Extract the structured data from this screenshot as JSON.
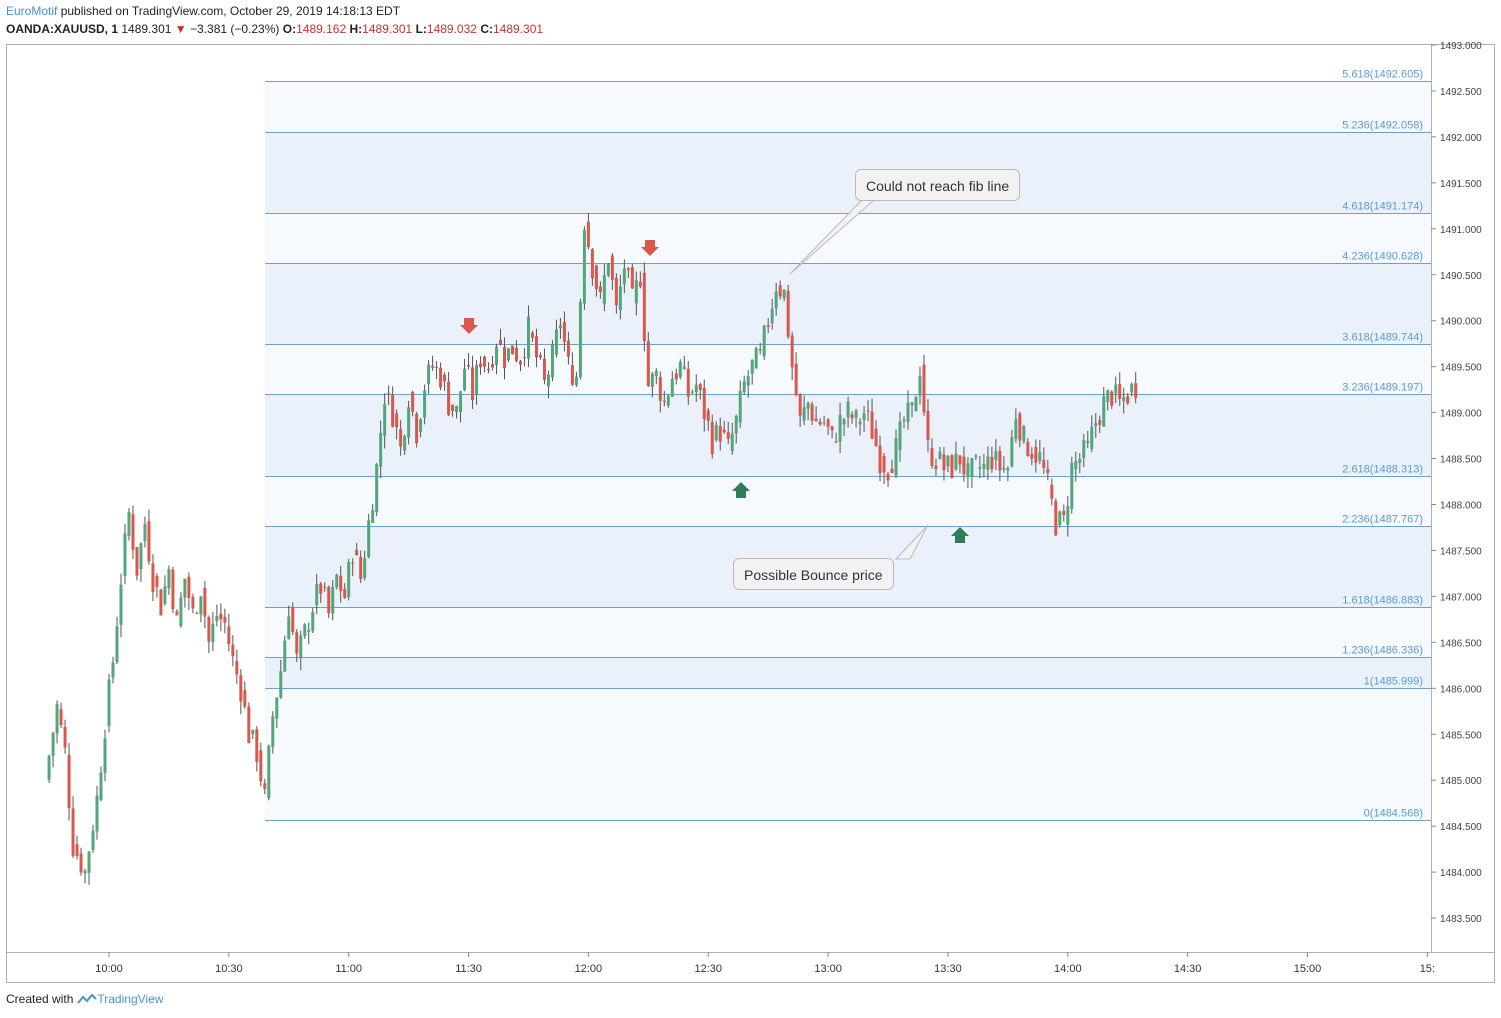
{
  "header": {
    "author": "EuroMotif",
    "published_text": "published on TradingView.com, October 29, 2019 14:18:13 EDT",
    "symbol": "OANDA:XAUUSD, 1",
    "last_price": "1489.301",
    "change": "−3.381 (−0.23%)",
    "open_label": "O:",
    "open": "1489.162",
    "high_label": "H:",
    "high": "1489.301",
    "low_label": "L:",
    "low": "1489.032",
    "close_label": "C:",
    "close": "1489.301"
  },
  "footer": {
    "created_with": "Created with",
    "brand": "TradingView"
  },
  "colors": {
    "up": "#55a57a",
    "down": "#d9574b",
    "fib_line": "#6fa0c8",
    "fib_text": "#5b9bd5",
    "fib_band": "#eaf1fa",
    "fib_band_light": "#f6f9fd",
    "arrow_down": "#d9574b",
    "arrow_up": "#2e7d56"
  },
  "callouts": [
    {
      "id": "could-not-reach",
      "text": "Could not reach fib line"
    },
    {
      "id": "possible-bounce",
      "text": "Possible Bounce price"
    }
  ],
  "chart_data": {
    "type": "candlestick",
    "title": "",
    "symbol": "OANDA:XAUUSD",
    "interval": "1",
    "ylim": [
      1483.0,
      1493.0
    ],
    "y_ticks": [
      "1483.500",
      "1484.000",
      "1484.500",
      "1485.000",
      "1485.500",
      "1486.000",
      "1486.500",
      "1487.000",
      "1487.500",
      "1488.000",
      "1488.500",
      "1489.000",
      "1489.500",
      "1490.000",
      "1490.500",
      "1491.000",
      "1491.500",
      "1492.000",
      "1492.500",
      "1493.000"
    ],
    "x_ticks": [
      "10:00",
      "10:30",
      "11:00",
      "11:30",
      "12:00",
      "12:30",
      "13:00",
      "13:30",
      "14:00",
      "14:30",
      "15:00",
      "15:"
    ],
    "fib_levels": [
      {
        "ratio": "0",
        "price": 1484.568,
        "label": "0(1484.568)"
      },
      {
        "ratio": "1",
        "price": 1485.999,
        "label": "1(1485.999)"
      },
      {
        "ratio": "1.236",
        "price": 1486.336,
        "label": "1.236(1486.336)"
      },
      {
        "ratio": "1.618",
        "price": 1486.883,
        "label": "1.618(1486.883)"
      },
      {
        "ratio": "2.236",
        "price": 1487.767,
        "label": "2.236(1487.767)"
      },
      {
        "ratio": "2.618",
        "price": 1488.313,
        "label": "2.618(1488.313)"
      },
      {
        "ratio": "3.236",
        "price": 1489.197,
        "label": "3.236(1489.197)"
      },
      {
        "ratio": "3.618",
        "price": 1489.744,
        "label": "3.618(1489.744)"
      },
      {
        "ratio": "4.236",
        "price": 1490.628,
        "label": "4.236(1490.628)"
      },
      {
        "ratio": "4.618",
        "price": 1491.174,
        "label": "4.618(1491.174)"
      },
      {
        "ratio": "5.236",
        "price": 1492.058,
        "label": "5.236(1492.058)"
      },
      {
        "ratio": "5.618",
        "price": 1492.605,
        "label": "5.618(1492.605)"
      }
    ],
    "price_path": [
      [
        "09:45",
        1485.0
      ],
      [
        "09:48",
        1485.8
      ],
      [
        "09:50",
        1485.3
      ],
      [
        "09:52",
        1484.3
      ],
      [
        "09:55",
        1484.0
      ],
      [
        "09:58",
        1484.8
      ],
      [
        "10:00",
        1485.6
      ],
      [
        "10:02",
        1486.3
      ],
      [
        "10:04",
        1487.2
      ],
      [
        "10:06",
        1487.9
      ],
      [
        "10:08",
        1487.3
      ],
      [
        "10:10",
        1487.8
      ],
      [
        "10:12",
        1487.2
      ],
      [
        "10:14",
        1486.9
      ],
      [
        "10:16",
        1487.3
      ],
      [
        "10:18",
        1486.7
      ],
      [
        "10:20",
        1487.2
      ],
      [
        "10:22",
        1486.8
      ],
      [
        "10:24",
        1487.1
      ],
      [
        "10:26",
        1486.5
      ],
      [
        "10:28",
        1486.8
      ],
      [
        "10:30",
        1486.7
      ],
      [
        "10:32",
        1486.3
      ],
      [
        "10:34",
        1486.0
      ],
      [
        "10:36",
        1485.5
      ],
      [
        "10:38",
        1485.3
      ],
      [
        "10:40",
        1484.8
      ],
      [
        "10:42",
        1485.7
      ],
      [
        "10:44",
        1486.2
      ],
      [
        "10:46",
        1486.9
      ],
      [
        "10:48",
        1486.3
      ],
      [
        "10:50",
        1486.6
      ],
      [
        "10:52",
        1486.9
      ],
      [
        "10:54",
        1487.1
      ],
      [
        "10:56",
        1486.8
      ],
      [
        "10:58",
        1487.2
      ],
      [
        "11:00",
        1487.0
      ],
      [
        "11:02",
        1487.5
      ],
      [
        "11:04",
        1487.2
      ],
      [
        "11:06",
        1487.8
      ],
      [
        "11:08",
        1488.4
      ],
      [
        "11:10",
        1489.2
      ],
      [
        "11:12",
        1489.0
      ],
      [
        "11:14",
        1488.6
      ],
      [
        "11:16",
        1489.2
      ],
      [
        "11:18",
        1488.8
      ],
      [
        "11:20",
        1489.3
      ],
      [
        "11:22",
        1489.5
      ],
      [
        "11:24",
        1489.4
      ],
      [
        "11:26",
        1489.1
      ],
      [
        "11:28",
        1489.0
      ],
      [
        "11:30",
        1489.5
      ],
      [
        "11:32",
        1489.2
      ],
      [
        "11:34",
        1489.6
      ],
      [
        "11:36",
        1489.5
      ],
      [
        "11:38",
        1489.8
      ],
      [
        "11:40",
        1489.6
      ],
      [
        "11:42",
        1489.7
      ],
      [
        "11:44",
        1489.6
      ],
      [
        "11:46",
        1489.9
      ],
      [
        "11:48",
        1489.6
      ],
      [
        "11:50",
        1489.3
      ],
      [
        "11:52",
        1489.6
      ],
      [
        "11:54",
        1490.0
      ],
      [
        "11:56",
        1489.5
      ],
      [
        "11:58",
        1489.4
      ],
      [
        "12:00",
        1491.1
      ],
      [
        "12:02",
        1490.6
      ],
      [
        "12:04",
        1490.2
      ],
      [
        "12:06",
        1490.7
      ],
      [
        "12:08",
        1490.1
      ],
      [
        "12:10",
        1490.6
      ],
      [
        "12:12",
        1490.2
      ],
      [
        "12:14",
        1490.5
      ],
      [
        "12:16",
        1489.3
      ],
      [
        "12:18",
        1489.4
      ],
      [
        "12:20",
        1489.1
      ],
      [
        "12:22",
        1489.4
      ],
      [
        "12:24",
        1489.5
      ],
      [
        "12:26",
        1489.2
      ],
      [
        "12:28",
        1489.3
      ],
      [
        "12:30",
        1489.0
      ],
      [
        "12:32",
        1488.7
      ],
      [
        "12:34",
        1488.8
      ],
      [
        "12:36",
        1488.6
      ],
      [
        "12:38",
        1488.9
      ],
      [
        "12:40",
        1489.3
      ],
      [
        "12:42",
        1489.5
      ],
      [
        "12:44",
        1489.6
      ],
      [
        "12:46",
        1490.0
      ],
      [
        "12:48",
        1490.4
      ],
      [
        "12:50",
        1490.3
      ],
      [
        "12:52",
        1489.5
      ],
      [
        "12:54",
        1488.9
      ],
      [
        "12:56",
        1489.1
      ],
      [
        "12:58",
        1488.9
      ],
      [
        "13:00",
        1488.9
      ],
      [
        "13:02",
        1488.7
      ],
      [
        "13:04",
        1488.9
      ],
      [
        "13:06",
        1489.0
      ],
      [
        "13:08",
        1488.9
      ],
      [
        "13:10",
        1489.0
      ],
      [
        "13:12",
        1488.8
      ],
      [
        "13:14",
        1488.5
      ],
      [
        "13:16",
        1488.4
      ],
      [
        "13:18",
        1488.6
      ],
      [
        "13:20",
        1488.9
      ],
      [
        "13:22",
        1489.0
      ],
      [
        "13:24",
        1489.5
      ],
      [
        "13:26",
        1488.6
      ],
      [
        "13:28",
        1488.5
      ],
      [
        "13:30",
        1488.4
      ],
      [
        "13:32",
        1488.4
      ],
      [
        "13:34",
        1488.5
      ],
      [
        "13:36",
        1488.3
      ],
      [
        "13:38",
        1488.4
      ],
      [
        "13:40",
        1488.4
      ],
      [
        "13:42",
        1488.5
      ],
      [
        "13:44",
        1488.4
      ],
      [
        "13:46",
        1488.4
      ],
      [
        "13:48",
        1489.0
      ],
      [
        "13:50",
        1488.7
      ],
      [
        "13:52",
        1488.6
      ],
      [
        "13:54",
        1488.5
      ],
      [
        "13:56",
        1488.2
      ],
      [
        "13:58",
        1487.8
      ],
      [
        "14:00",
        1487.8
      ],
      [
        "14:02",
        1488.4
      ],
      [
        "14:04",
        1488.5
      ],
      [
        "14:06",
        1488.6
      ],
      [
        "14:08",
        1488.9
      ],
      [
        "14:10",
        1489.1
      ],
      [
        "14:12",
        1489.2
      ],
      [
        "14:14",
        1489.1
      ],
      [
        "14:16",
        1489.2
      ],
      [
        "14:18",
        1489.3
      ]
    ]
  }
}
